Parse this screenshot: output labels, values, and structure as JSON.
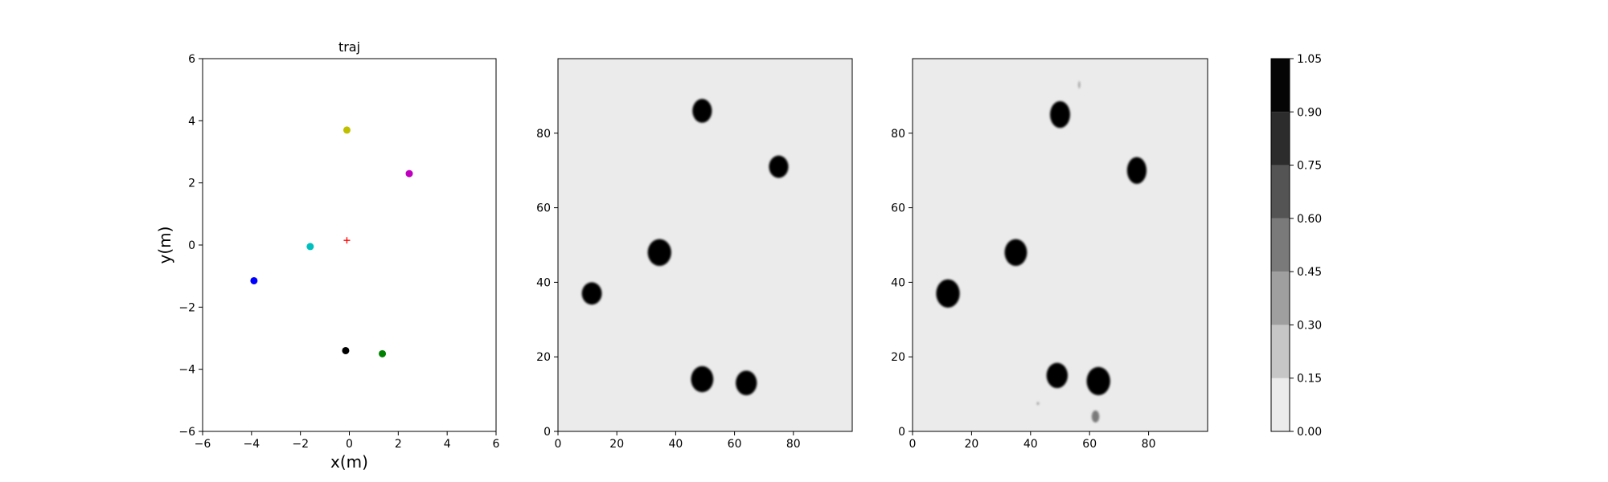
{
  "chart_data": [
    {
      "type": "scatter",
      "title": "traj",
      "xlabel": "x(m)",
      "ylabel": "y(m)",
      "xlim": [
        -6,
        6
      ],
      "ylim": [
        -6,
        6
      ],
      "xticks": [
        -6,
        -4,
        -2,
        0,
        2,
        4,
        6
      ],
      "yticks": [
        -6,
        -4,
        -2,
        0,
        2,
        4,
        6
      ],
      "tick_labels": {
        "x": [
          "−6",
          "−4",
          "−2",
          "0",
          "2",
          "4",
          "6"
        ],
        "y": [
          "−6",
          "−4",
          "−2",
          "0",
          "2",
          "4",
          "6"
        ]
      },
      "grid": false,
      "points": [
        {
          "x": -0.1,
          "y": 3.7,
          "color": "#bfbf00",
          "marker": "circle"
        },
        {
          "x": 2.45,
          "y": 2.3,
          "color": "#bf00bf",
          "marker": "circle"
        },
        {
          "x": -1.6,
          "y": -0.05,
          "color": "#00bfbf",
          "marker": "circle"
        },
        {
          "x": -3.9,
          "y": -1.15,
          "color": "#0000ff",
          "marker": "circle"
        },
        {
          "x": -0.15,
          "y": -3.4,
          "color": "#000000",
          "marker": "circle"
        },
        {
          "x": 1.35,
          "y": -3.5,
          "color": "#008000",
          "marker": "circle"
        },
        {
          "x": -0.1,
          "y": 0.15,
          "color": "#ff0000",
          "marker": "plus"
        }
      ]
    },
    {
      "type": "heatmap",
      "title": "",
      "xlim": [
        0,
        100
      ],
      "ylim": [
        0,
        100
      ],
      "xticks": [
        0,
        20,
        40,
        60,
        80
      ],
      "yticks": [
        0,
        20,
        40,
        60,
        80
      ],
      "background_value": 0.0,
      "blobs": [
        {
          "x": 49,
          "y": 86,
          "rx": 3.3,
          "ry": 3.2,
          "value": 1.0
        },
        {
          "x": 75,
          "y": 71,
          "rx": 3.3,
          "ry": 3.0,
          "value": 1.0
        },
        {
          "x": 34.5,
          "y": 48,
          "rx": 4.0,
          "ry": 3.6,
          "value": 1.0
        },
        {
          "x": 11.5,
          "y": 37,
          "rx": 3.4,
          "ry": 3.0,
          "value": 1.0
        },
        {
          "x": 49,
          "y": 14,
          "rx": 3.8,
          "ry": 3.5,
          "value": 1.0
        },
        {
          "x": 64,
          "y": 13,
          "rx": 3.6,
          "ry": 3.3,
          "value": 1.0
        }
      ]
    },
    {
      "type": "heatmap",
      "title": "",
      "xlim": [
        0,
        100
      ],
      "ylim": [
        0,
        100
      ],
      "xticks": [
        0,
        20,
        40,
        60,
        80
      ],
      "yticks": [
        0,
        20,
        40,
        60,
        80
      ],
      "background_value": 0.0,
      "blobs": [
        {
          "x": 50,
          "y": 85,
          "rx": 3.4,
          "ry": 3.6,
          "value": 1.0
        },
        {
          "x": 76,
          "y": 70,
          "rx": 3.3,
          "ry": 3.6,
          "value": 1.0
        },
        {
          "x": 35,
          "y": 48,
          "rx": 3.8,
          "ry": 3.6,
          "value": 1.0
        },
        {
          "x": 12,
          "y": 37,
          "rx": 4.0,
          "ry": 3.8,
          "value": 1.0
        },
        {
          "x": 49,
          "y": 15,
          "rx": 3.6,
          "ry": 3.4,
          "value": 1.0
        },
        {
          "x": 63,
          "y": 13.5,
          "rx": 4.0,
          "ry": 3.8,
          "value": 1.0
        },
        {
          "x": 62,
          "y": 4,
          "rx": 1.3,
          "ry": 1.6,
          "value": 0.5
        },
        {
          "x": 56.5,
          "y": 93,
          "rx": 0.3,
          "ry": 1.0,
          "value": 0.3
        },
        {
          "x": 42.5,
          "y": 7.5,
          "rx": 0.4,
          "ry": 0.4,
          "value": 0.3
        }
      ]
    }
  ],
  "colorbar": {
    "ticks": [
      "0.00",
      "0.15",
      "0.30",
      "0.45",
      "0.60",
      "0.75",
      "0.90",
      "1.05"
    ],
    "range": [
      0.0,
      1.05
    ],
    "levels": [
      {
        "from": 0.0,
        "to": 0.15,
        "color": "#ebebeb"
      },
      {
        "from": 0.15,
        "to": 0.3,
        "color": "#c6c6c6"
      },
      {
        "from": 0.3,
        "to": 0.45,
        "color": "#9f9f9f"
      },
      {
        "from": 0.45,
        "to": 0.6,
        "color": "#7a7a7a"
      },
      {
        "from": 0.6,
        "to": 0.75,
        "color": "#545454"
      },
      {
        "from": 0.75,
        "to": 0.9,
        "color": "#2c2c2c"
      },
      {
        "from": 0.9,
        "to": 1.05,
        "color": "#050505"
      }
    ]
  }
}
